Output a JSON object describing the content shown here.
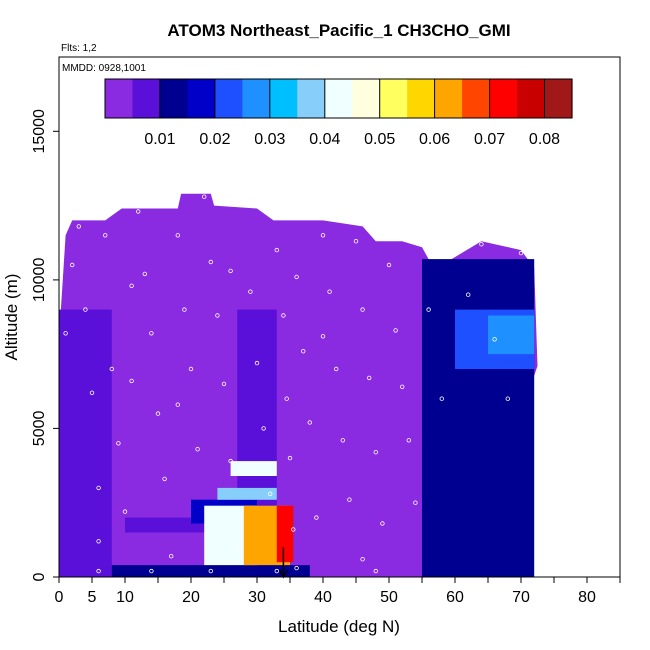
{
  "chart_data": {
    "type": "heatmap",
    "title": "ATOM3 Northeast_Pacific_1 CH3CHO_GMI",
    "flights_label": "Flts: 1,2",
    "date_label": "MMDD: 0928,1001",
    "xlabel": "Latitude (deg N)",
    "ylabel": "Altitude (m)",
    "xlim": [
      0,
      85
    ],
    "ylim": [
      0,
      17500
    ],
    "x_ticks": [
      0,
      5,
      10,
      20,
      30,
      40,
      50,
      60,
      70,
      80
    ],
    "x_minor_ticks": [
      15,
      25,
      35,
      45,
      55,
      65,
      75,
      85
    ],
    "y_ticks": [
      0,
      5000,
      10000,
      15000
    ],
    "colorbar": {
      "range": [
        0.0,
        0.085
      ],
      "ticks": [
        0.01,
        0.02,
        0.03,
        0.04,
        0.05,
        0.06,
        0.07,
        0.08
      ],
      "colors": [
        "#8a2be2",
        "#5a10d8",
        "#000090",
        "#0000c8",
        "#1e50ff",
        "#1e90ff",
        "#00bfff",
        "#87cefa",
        "#f0ffff",
        "#ffffe0",
        "#ffff60",
        "#ffd700",
        "#ffa500",
        "#ff4500",
        "#ff0000",
        "#c80000",
        "#a01818"
      ]
    },
    "arrow": {
      "lat": 34,
      "alt_top": 1000,
      "alt_bottom": 0
    },
    "field": {
      "background_value": 0.002,
      "envelope": [
        [
          0,
          8000
        ],
        [
          1,
          11500
        ],
        [
          2,
          12000
        ],
        [
          7,
          12000
        ],
        [
          9.5,
          12400
        ],
        [
          18,
          12400
        ],
        [
          18.5,
          12900
        ],
        [
          23,
          12900
        ],
        [
          23.5,
          12500
        ],
        [
          30,
          12400
        ],
        [
          32.5,
          12000
        ],
        [
          40,
          12000
        ],
        [
          46,
          11800
        ],
        [
          48,
          11300
        ],
        [
          52,
          11300
        ],
        [
          55,
          11100
        ],
        [
          56,
          10700
        ],
        [
          58,
          10500
        ],
        [
          64,
          11300
        ],
        [
          70,
          11000
        ],
        [
          72,
          10400
        ],
        [
          72.5,
          7100
        ],
        [
          70,
          5500
        ],
        [
          64,
          4000
        ],
        [
          62,
          3200
        ],
        [
          60,
          2600
        ],
        [
          58,
          2000
        ],
        [
          56,
          1400
        ],
        [
          55,
          500
        ],
        [
          55,
          0
        ],
        [
          0,
          0
        ]
      ],
      "features": [
        {
          "lat0": 0,
          "lat1": 8,
          "alt0": 0,
          "alt1": 9000,
          "value": 0.008
        },
        {
          "lat0": 27,
          "lat1": 33,
          "alt0": 0,
          "alt1": 9000,
          "value": 0.006
        },
        {
          "lat0": 10,
          "lat1": 25,
          "alt0": 1500,
          "alt1": 2000,
          "value": 0.006
        },
        {
          "lat0": 8,
          "lat1": 38,
          "alt0": 0,
          "alt1": 400,
          "value": 0.012
        },
        {
          "lat0": 55,
          "lat1": 72,
          "alt0": 0,
          "alt1": 10700,
          "value": 0.012
        },
        {
          "lat0": 60,
          "lat1": 72,
          "alt0": 7000,
          "alt1": 9000,
          "value": 0.022
        },
        {
          "lat0": 65,
          "lat1": 72,
          "alt0": 7500,
          "alt1": 8800,
          "value": 0.028
        },
        {
          "lat0": 20,
          "lat1": 30,
          "alt0": 1800,
          "alt1": 2600,
          "value": 0.018
        },
        {
          "lat0": 24,
          "lat1": 33,
          "alt0": 2600,
          "alt1": 3000,
          "value": 0.036
        },
        {
          "lat0": 26,
          "lat1": 33,
          "alt0": 3400,
          "alt1": 3900,
          "value": 0.045
        },
        {
          "lat0": 22,
          "lat1": 30,
          "alt0": 400,
          "alt1": 2400,
          "value": 0.04
        },
        {
          "lat0": 28,
          "lat1": 35,
          "alt0": 400,
          "alt1": 2400,
          "value": 0.062
        },
        {
          "lat0": 33,
          "lat1": 35.5,
          "alt0": 500,
          "alt1": 2400,
          "value": 0.075
        }
      ]
    },
    "observations": [
      [
        1,
        8200
      ],
      [
        2,
        10500
      ],
      [
        3,
        11800
      ],
      [
        4,
        9000
      ],
      [
        5,
        6200
      ],
      [
        6,
        3000
      ],
      [
        6,
        1200
      ],
      [
        7,
        11500
      ],
      [
        8,
        7000
      ],
      [
        9,
        4500
      ],
      [
        10,
        2200
      ],
      [
        11,
        9800
      ],
      [
        12,
        12300
      ],
      [
        13,
        10200
      ],
      [
        14,
        8200
      ],
      [
        15,
        5500
      ],
      [
        16,
        3300
      ],
      [
        17,
        700
      ],
      [
        18,
        11500
      ],
      [
        19,
        9000
      ],
      [
        20,
        7000
      ],
      [
        21,
        4300
      ],
      [
        22,
        12800
      ],
      [
        23,
        10600
      ],
      [
        24,
        8800
      ],
      [
        25,
        6500
      ],
      [
        26,
        3900
      ],
      [
        27,
        1000
      ],
      [
        28,
        12700
      ],
      [
        29,
        9600
      ],
      [
        30,
        7200
      ],
      [
        31,
        5000
      ],
      [
        32,
        2800
      ],
      [
        33,
        11000
      ],
      [
        34,
        8800
      ],
      [
        34.5,
        6000
      ],
      [
        35,
        4000
      ],
      [
        35.5,
        1600
      ],
      [
        36,
        10100
      ],
      [
        37,
        7600
      ],
      [
        38,
        5200
      ],
      [
        39,
        2000
      ],
      [
        40,
        11500
      ],
      [
        41,
        9600
      ],
      [
        42,
        7000
      ],
      [
        43,
        4600
      ],
      [
        44,
        2600
      ],
      [
        45,
        11300
      ],
      [
        46,
        9000
      ],
      [
        47,
        6700
      ],
      [
        48,
        4200
      ],
      [
        49,
        1800
      ],
      [
        50,
        10500
      ],
      [
        51,
        8300
      ],
      [
        52,
        6400
      ],
      [
        53,
        4600
      ],
      [
        54,
        2500
      ],
      [
        56,
        9000
      ],
      [
        58,
        6000
      ],
      [
        60,
        11000
      ],
      [
        62,
        9500
      ],
      [
        64,
        11200
      ],
      [
        66,
        8000
      ],
      [
        68,
        6000
      ],
      [
        70,
        10900
      ],
      [
        46,
        600
      ],
      [
        48,
        200
      ],
      [
        36,
        300
      ],
      [
        33,
        200
      ],
      [
        23,
        200
      ],
      [
        14,
        200
      ],
      [
        6,
        200
      ],
      [
        40,
        8100
      ],
      [
        26,
        10300
      ],
      [
        18,
        5800
      ],
      [
        11,
        6600
      ]
    ]
  }
}
